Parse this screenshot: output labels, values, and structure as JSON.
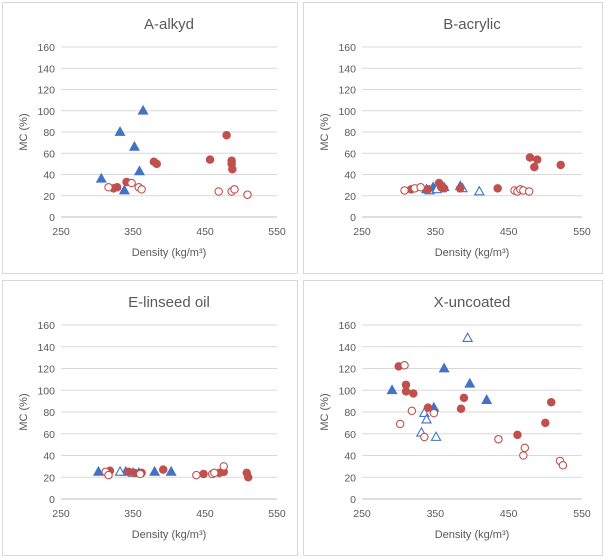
{
  "chart_data": [
    {
      "type": "scatter",
      "title": "A-alkyd",
      "xlabel": "Density (kg/m³)",
      "ylabel": "MC (%)",
      "xlim": [
        250,
        550
      ],
      "ylim": [
        0,
        160
      ],
      "xticks": [
        "250",
        "350",
        "450",
        "550"
      ],
      "yticks": [
        "0",
        "20",
        "40",
        "60",
        "80",
        "100",
        "120",
        "140",
        "160"
      ],
      "series": [
        {
          "name": "triangle filled",
          "marker": "triangle",
          "filled": true,
          "color": "#4472C4",
          "points": [
            [
              306,
              36
            ],
            [
              332,
              80
            ],
            [
              338,
              25
            ],
            [
              352,
              66
            ],
            [
              359,
              43
            ],
            [
              364,
              100
            ]
          ]
        },
        {
          "name": "circle filled",
          "marker": "circle",
          "filled": true,
          "color": "#C0504D",
          "points": [
            [
              323,
              27
            ],
            [
              328,
              28
            ],
            [
              341,
              33
            ],
            [
              379,
              52
            ],
            [
              383,
              50
            ],
            [
              457,
              54
            ],
            [
              480,
              77
            ],
            [
              487,
              53
            ],
            [
              487,
              50
            ],
            [
              488,
              45
            ]
          ]
        },
        {
          "name": "circle open",
          "marker": "circle",
          "filled": false,
          "color": "#C0504D",
          "points": [
            [
              316,
              28
            ],
            [
              348,
              32
            ],
            [
              358,
              28
            ],
            [
              362,
              26
            ],
            [
              469,
              24
            ],
            [
              487,
              24
            ],
            [
              491,
              26
            ],
            [
              509,
              21
            ]
          ]
        }
      ]
    },
    {
      "type": "scatter",
      "title": "B-acrylic",
      "xlabel": "Density (kg/m³)",
      "ylabel": "MC (%)",
      "xlim": [
        250,
        550
      ],
      "ylim": [
        0,
        160
      ],
      "xticks": [
        "250",
        "350",
        "450",
        "550"
      ],
      "yticks": [
        "0",
        "20",
        "40",
        "60",
        "80",
        "100",
        "120",
        "140",
        "160"
      ],
      "series": [
        {
          "name": "triangle filled",
          "marker": "triangle",
          "filled": true,
          "color": "#4472C4",
          "points": [
            [
              338,
              26
            ],
            [
              347,
              28
            ],
            [
              384,
              29
            ]
          ]
        },
        {
          "name": "triangle open",
          "marker": "triangle",
          "filled": false,
          "color": "#4472C4",
          "points": [
            [
              342,
              25
            ],
            [
              352,
              26
            ],
            [
              362,
              28
            ],
            [
              387,
              27
            ],
            [
              410,
              24
            ]
          ]
        },
        {
          "name": "circle filled",
          "marker": "circle",
          "filled": true,
          "color": "#C0504D",
          "points": [
            [
              317,
              26
            ],
            [
              340,
              26
            ],
            [
              355,
              32
            ],
            [
              358,
              28
            ],
            [
              362,
              27
            ],
            [
              384,
              27
            ],
            [
              435,
              27
            ],
            [
              479,
              56
            ],
            [
              485,
              47
            ],
            [
              489,
              54
            ],
            [
              521,
              49
            ]
          ]
        },
        {
          "name": "circle open",
          "marker": "circle",
          "filled": false,
          "color": "#C0504D",
          "points": [
            [
              308,
              25
            ],
            [
              322,
              27
            ],
            [
              330,
              28
            ],
            [
              458,
              25
            ],
            [
              462,
              24
            ],
            [
              466,
              26
            ],
            [
              470,
              25
            ],
            [
              478,
              24
            ]
          ]
        }
      ]
    },
    {
      "type": "scatter",
      "title": "E-linseed oil",
      "xlabel": "Density (kg/m³)",
      "ylabel": "MC (%)",
      "xlim": [
        250,
        550
      ],
      "ylim": [
        0,
        160
      ],
      "xticks": [
        "250",
        "350",
        "450",
        "550"
      ],
      "yticks": [
        "0",
        "20",
        "40",
        "60",
        "80",
        "100",
        "120",
        "140",
        "160"
      ],
      "series": [
        {
          "name": "triangle filled",
          "marker": "triangle",
          "filled": true,
          "color": "#4472C4",
          "points": [
            [
              302,
              25
            ],
            [
              340,
              25
            ],
            [
              358,
              24
            ],
            [
              380,
              25
            ],
            [
              403,
              25
            ]
          ]
        },
        {
          "name": "triangle open",
          "marker": "triangle",
          "filled": false,
          "color": "#4472C4",
          "points": [
            [
              332,
              25
            ],
            [
              350,
              24
            ]
          ]
        },
        {
          "name": "circle filled",
          "marker": "circle",
          "filled": true,
          "color": "#C0504D",
          "points": [
            [
              318,
              26
            ],
            [
              344,
              25
            ],
            [
              352,
              24
            ],
            [
              362,
              24
            ],
            [
              392,
              27
            ],
            [
              448,
              23
            ],
            [
              470,
              24
            ],
            [
              476,
              25
            ],
            [
              508,
              24
            ],
            [
              510,
              20
            ]
          ]
        },
        {
          "name": "circle open",
          "marker": "circle",
          "filled": false,
          "color": "#C0504D",
          "points": [
            [
              312,
              25
            ],
            [
              316,
              22
            ],
            [
              360,
              23
            ],
            [
              438,
              22
            ],
            [
              460,
              23
            ],
            [
              463,
              24
            ],
            [
              476,
              30
            ]
          ]
        }
      ]
    },
    {
      "type": "scatter",
      "title": "X-uncoated",
      "xlabel": "Density (kg/m³)",
      "ylabel": "MC (%)",
      "xlim": [
        250,
        550
      ],
      "ylim": [
        0,
        160
      ],
      "xticks": [
        "250",
        "350",
        "450",
        "550"
      ],
      "yticks": [
        "0",
        "20",
        "40",
        "60",
        "80",
        "100",
        "120",
        "140",
        "160"
      ],
      "series": [
        {
          "name": "triangle filled",
          "marker": "triangle",
          "filled": true,
          "color": "#4472C4",
          "points": [
            [
              291,
              100
            ],
            [
              348,
              84
            ],
            [
              362,
              120
            ],
            [
              397,
              106
            ],
            [
              420,
              91
            ]
          ]
        },
        {
          "name": "triangle open",
          "marker": "triangle",
          "filled": false,
          "color": "#4472C4",
          "points": [
            [
              331,
              61
            ],
            [
              335,
              79
            ],
            [
              338,
              73
            ],
            [
              351,
              57
            ],
            [
              394,
              148
            ]
          ]
        },
        {
          "name": "circle filled",
          "marker": "circle",
          "filled": true,
          "color": "#C0504D",
          "points": [
            [
              300,
              122
            ],
            [
              310,
              105
            ],
            [
              310,
              99
            ],
            [
              320,
              97
            ],
            [
              340,
              84
            ],
            [
              385,
              83
            ],
            [
              389,
              93
            ],
            [
              462,
              59
            ],
            [
              500,
              70
            ],
            [
              508,
              89
            ]
          ]
        },
        {
          "name": "circle open",
          "marker": "circle",
          "filled": false,
          "color": "#C0504D",
          "points": [
            [
              302,
              69
            ],
            [
              308,
              123
            ],
            [
              318,
              81
            ],
            [
              335,
              57
            ],
            [
              348,
              79
            ],
            [
              436,
              55
            ],
            [
              470,
              40
            ],
            [
              472,
              47
            ],
            [
              520,
              35
            ],
            [
              524,
              31
            ]
          ]
        }
      ]
    }
  ]
}
